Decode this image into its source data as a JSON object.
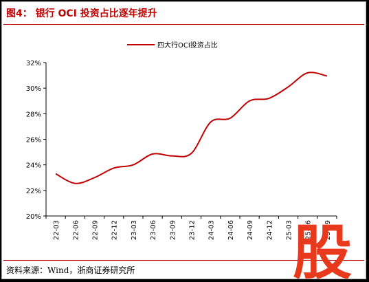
{
  "header": {
    "title": "图4：  银行 OCI 投资占比逐年提升"
  },
  "footer": {
    "source": "资料来源：Wind，浙商证券研究所"
  },
  "watermark": {
    "icon": "stock-character-logo-icon",
    "color": "#e8391c",
    "text": "股"
  },
  "chart_data": {
    "type": "line",
    "title": "",
    "xlabel": "",
    "ylabel": "",
    "legend_position": "top-center",
    "grid": false,
    "ylim": [
      20,
      32
    ],
    "y_ticks": [
      "20%",
      "22%",
      "24%",
      "26%",
      "28%",
      "30%",
      "32%"
    ],
    "categories": [
      "22-03",
      "22-06",
      "22-09",
      "22-12",
      "23-03",
      "23-06",
      "23-09",
      "23-12",
      "24-03",
      "24-06",
      "24-09",
      "24-12",
      "25-03",
      "25-06",
      "25-09"
    ],
    "series": [
      {
        "name": "四大行OCI投资占比",
        "color": "#c00000",
        "values": [
          23.3,
          22.55,
          23.0,
          23.75,
          24.0,
          24.85,
          24.7,
          24.9,
          27.35,
          27.65,
          29.0,
          29.2,
          30.1,
          31.2,
          30.95
        ]
      }
    ]
  }
}
